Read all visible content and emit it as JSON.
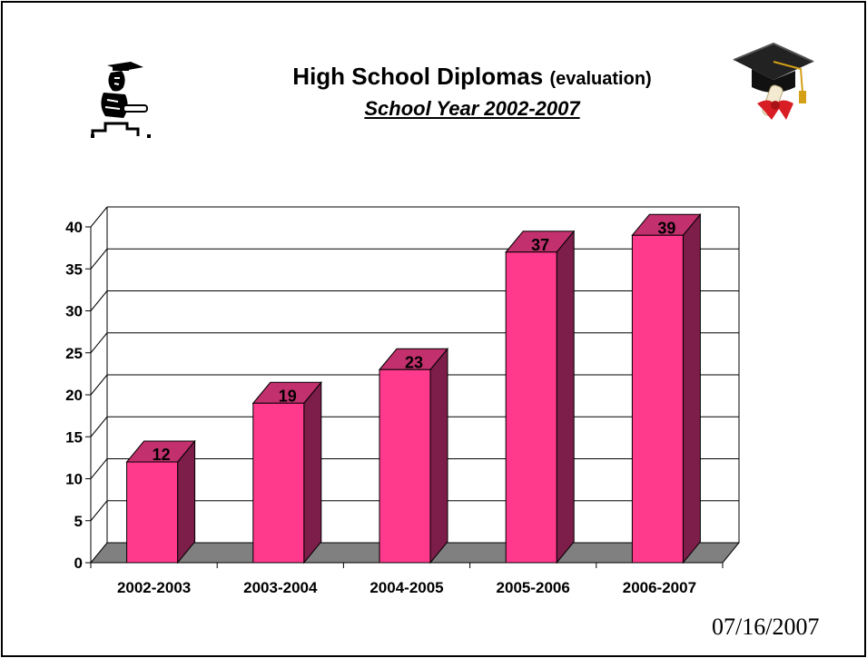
{
  "slide": {
    "title": "High School Diplomas",
    "title_suffix": "(evaluation)",
    "subtitle": "School Year 2002-2007",
    "date": "07/16/2007"
  },
  "icons": {
    "left": "student-clipart-icon",
    "right": "graduation-cap-diploma-icon"
  },
  "chart_data": {
    "type": "bar",
    "style": "3d",
    "categories": [
      "2002-2003",
      "2003-2004",
      "2004-2005",
      "2005-2006",
      "2006-2007"
    ],
    "series": [
      {
        "values": [
          12,
          19,
          23,
          37,
          39
        ]
      }
    ],
    "data_labels": [
      "12",
      "19",
      "23",
      "37",
      "39"
    ],
    "yticks": [
      0,
      5,
      10,
      15,
      20,
      25,
      30,
      35,
      40
    ],
    "ylim": [
      0,
      40
    ],
    "xlabel": "",
    "ylabel": "",
    "grid": true,
    "legend": "none",
    "colors": {
      "bar_front": "#FF3A8C",
      "bar_top": "#C2306E",
      "bar_side": "#7D1D49",
      "floor": "#808080"
    }
  }
}
